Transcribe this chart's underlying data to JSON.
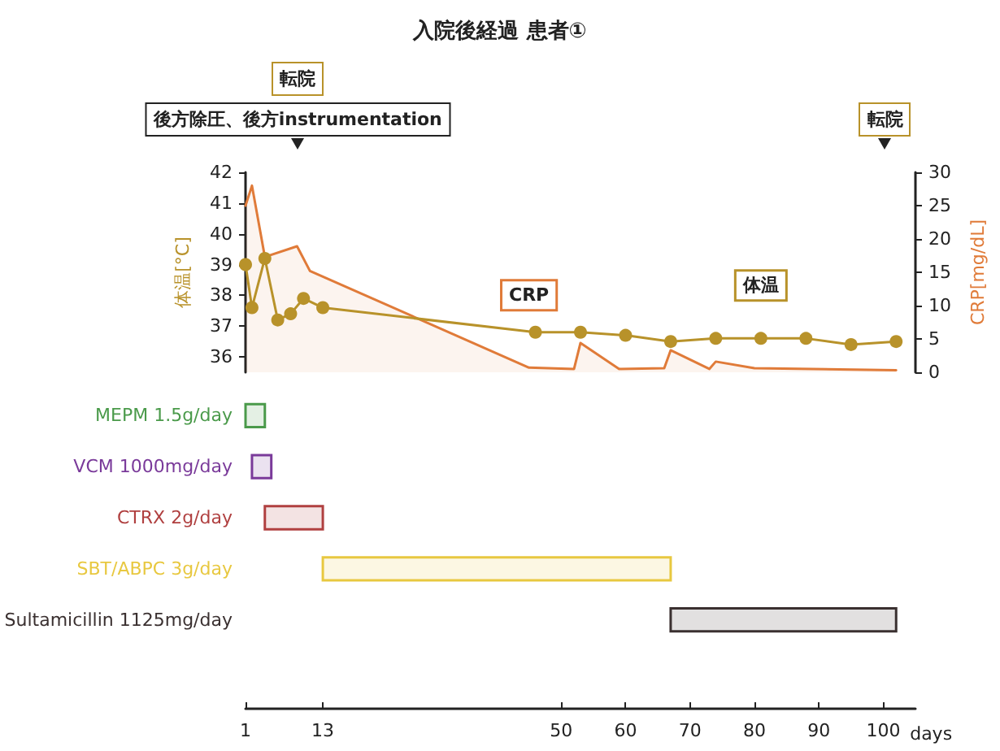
{
  "chart_data": [
    {
      "type": "line",
      "title": "入院後経過 患者①",
      "ylabel": "体温[°C]",
      "y2label": "CRP[mg/dL]",
      "xlim": [
        1,
        105
      ],
      "ylim": [
        35.5,
        42
      ],
      "yticks": [
        36,
        37,
        38,
        39,
        40,
        41,
        42
      ],
      "y2lim": [
        0,
        30
      ],
      "y2ticks": [
        0,
        5,
        10,
        15,
        20,
        25,
        30
      ],
      "tick_labels": "y",
      "legend": false,
      "annotations": [
        "転院",
        "後方除圧、後方instrumentation",
        "転院"
      ],
      "series": [
        {
          "name": "CRP",
          "type": "area",
          "axis": "y2",
          "color": "#e07b39",
          "x": [
            1,
            2,
            4,
            9,
            11,
            45,
            52,
            53,
            59,
            66,
            67,
            73,
            74,
            80,
            102
          ],
          "values": [
            25,
            28,
            17.3,
            18.9,
            15.2,
            0.7,
            0.5,
            4.4,
            0.5,
            0.6,
            3.3,
            0.5,
            1.6,
            0.6,
            0.3
          ]
        },
        {
          "name": "体温",
          "type": "line",
          "marker": "circle",
          "color": "#b8922a",
          "x": [
            1,
            2,
            4,
            6,
            8,
            10,
            13,
            46,
            53,
            60,
            67,
            74,
            81,
            88,
            95,
            102
          ],
          "values": [
            39.0,
            37.6,
            39.2,
            37.2,
            37.4,
            37.9,
            37.6,
            36.8,
            36.8,
            36.7,
            36.5,
            36.6,
            36.6,
            36.6,
            36.4,
            36.5
          ]
        }
      ]
    },
    {
      "type": "bar",
      "orientation": "horizontal",
      "categories": [
        "MEPM 1.5g/day",
        "VCM 1000mg/day",
        "CTRX 2g/day",
        "SBT/ABPC 3g/day",
        "Sultamicillin 1125mg/day"
      ],
      "base": [
        1,
        2,
        4,
        13,
        67
      ],
      "values": [
        3,
        3,
        9,
        54,
        35
      ],
      "colors": [
        "#4a9a4a",
        "#7a3a9a",
        "#b04040",
        "#e8c840",
        "#3a3030"
      ],
      "xlim": [
        1,
        105
      ],
      "xticks": [
        1,
        13,
        50,
        60,
        70,
        80,
        90,
        100
      ],
      "xlabel": "days"
    }
  ]
}
